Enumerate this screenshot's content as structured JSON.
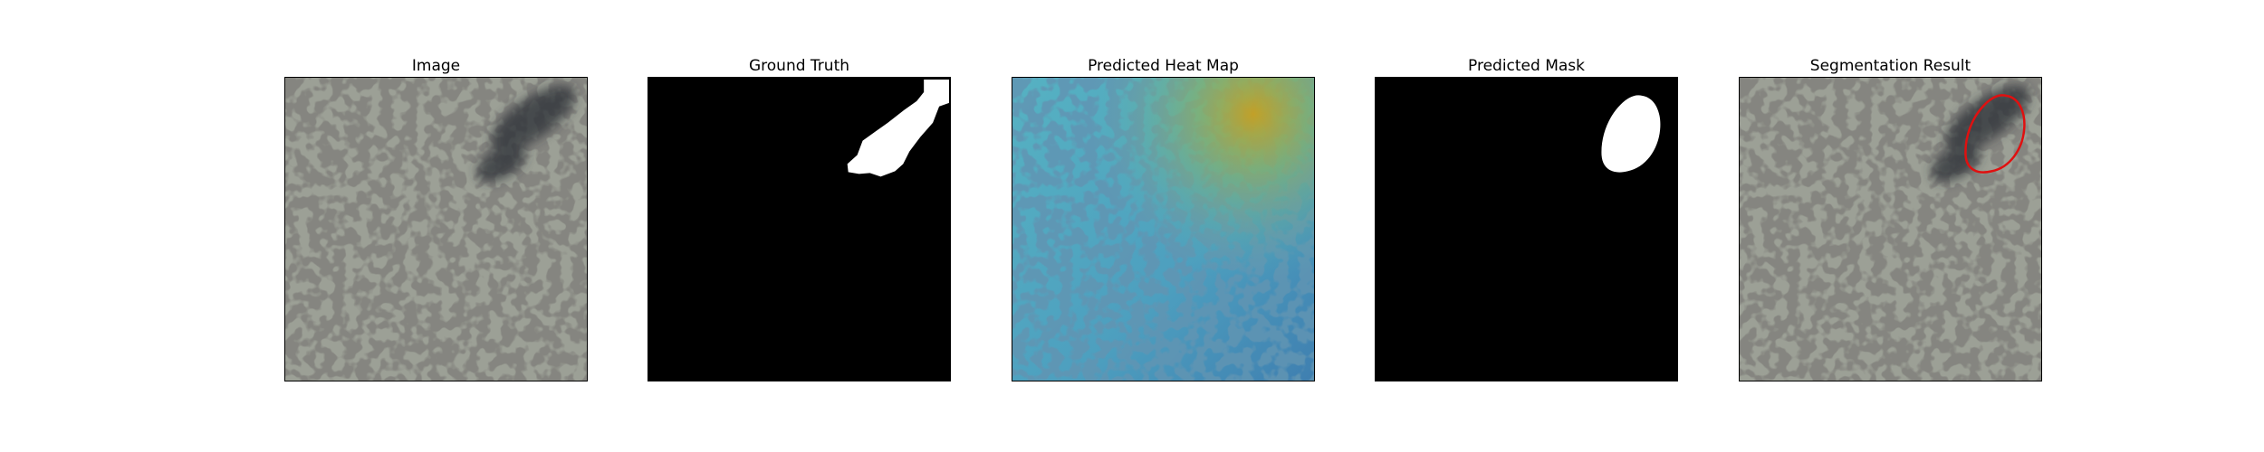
{
  "figure": {
    "panels": [
      {
        "title": "Image"
      },
      {
        "title": "Ground Truth"
      },
      {
        "title": "Predicted Heat Map"
      },
      {
        "title": "Predicted Mask"
      },
      {
        "title": "Segmentation Result"
      }
    ]
  },
  "colors": {
    "texture_base": "#9ca096",
    "texture_speckle": "#3c3c37",
    "defect_dark": "#2c2e36",
    "mask_background": "#000000",
    "mask_foreground": "#ffffff",
    "contour": "#e01010"
  }
}
